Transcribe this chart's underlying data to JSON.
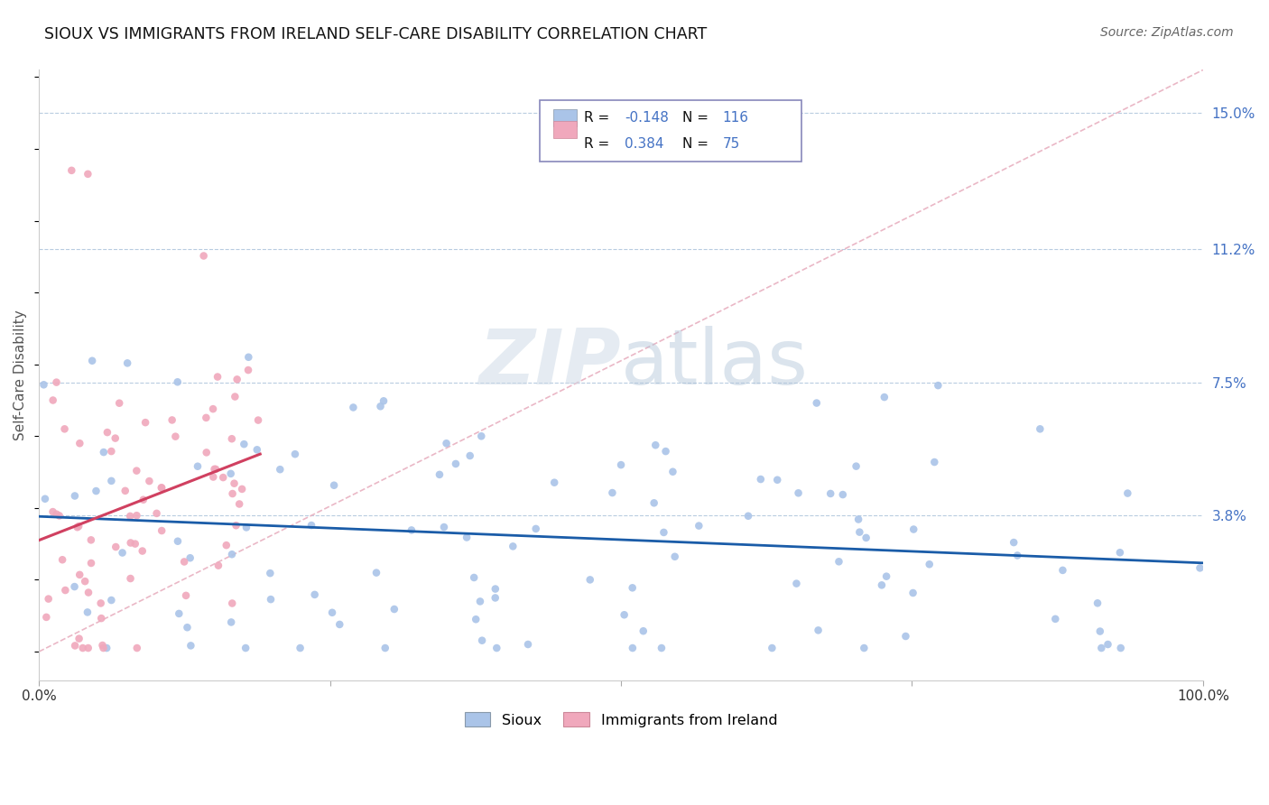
{
  "title": "SIOUX VS IMMIGRANTS FROM IRELAND SELF-CARE DISABILITY CORRELATION CHART",
  "source": "Source: ZipAtlas.com",
  "ylabel": "Self-Care Disability",
  "watermark_zip": "ZIP",
  "watermark_atlas": "atlas",
  "legend_r1_label": "R = ",
  "legend_r1_val": "-0.148",
  "legend_n1_label": "N = ",
  "legend_n1_val": "116",
  "legend_r2_label": "R = ",
  "legend_r2_val": "0.384",
  "legend_n2_label": "N = ",
  "legend_n2_val": "75",
  "sioux_color": "#aac4e8",
  "ireland_color": "#f0a8bc",
  "sioux_line_color": "#1a5ca8",
  "ireland_line_color": "#d04060",
  "diag_line_color": "#e8b0c0",
  "background_color": "#ffffff",
  "grid_color": "#b8cce0",
  "xmin": 0.0,
  "xmax": 1.0,
  "ymin": -0.008,
  "ymax": 0.162,
  "ytick_vals": [
    0.038,
    0.075,
    0.112,
    0.15
  ],
  "ytick_labels": [
    "3.8%",
    "7.5%",
    "11.2%",
    "15.0%"
  ],
  "sioux_seed": 101,
  "ireland_seed": 202,
  "title_fontsize": 12.5,
  "source_fontsize": 10,
  "tick_fontsize": 11,
  "ylabel_fontsize": 11
}
